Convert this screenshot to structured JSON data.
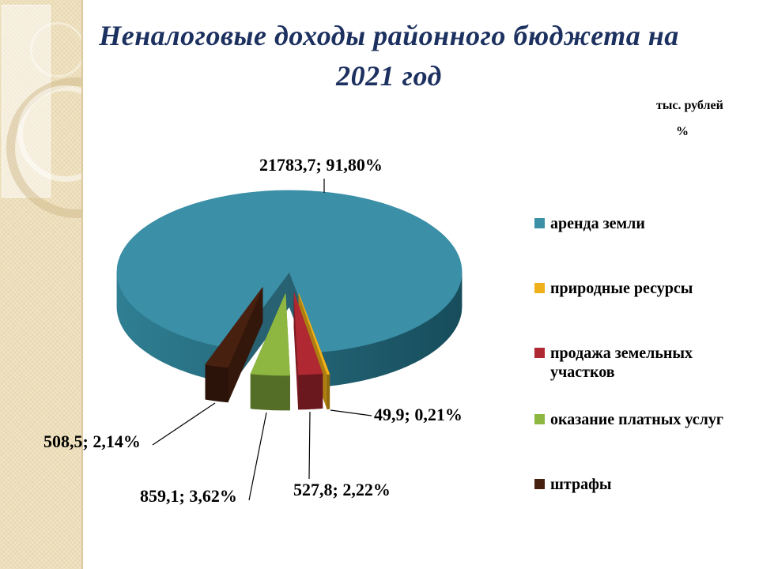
{
  "slide": {
    "title_line1": "Неналоговые доходы районного бюджета на",
    "title_line2": "2021 год",
    "unit_label": "тыс. рублей",
    "unit_percent_label": "%"
  },
  "chart_data": {
    "type": "pie",
    "style": "3d-exploded",
    "title": "Неналоговые доходы районного бюджета на 2021 год",
    "units": [
      "тыс. рублей",
      "%"
    ],
    "legend_position": "right",
    "slices": [
      {
        "name": "аренда земли",
        "value": 21783.7,
        "percent": 91.8,
        "label": "21783,7; 91,80%",
        "color": "#3B8FA6"
      },
      {
        "name": "природные ресурсы",
        "value": 49.9,
        "percent": 0.21,
        "label": "49,9; 0,21%",
        "color": "#F0B019"
      },
      {
        "name": "продажа земельных участков",
        "value": 527.8,
        "percent": 2.22,
        "label": "527,8; 2,22%",
        "color": "#B02832"
      },
      {
        "name": "оказание платных услуг",
        "value": 859.1,
        "percent": 3.62,
        "label": "859,1; 3,62%",
        "color": "#8DB741"
      },
      {
        "name": "штрафы",
        "value": 508.5,
        "percent": 2.14,
        "label": "508,5; 2,14%",
        "color": "#48200F"
      }
    ]
  }
}
